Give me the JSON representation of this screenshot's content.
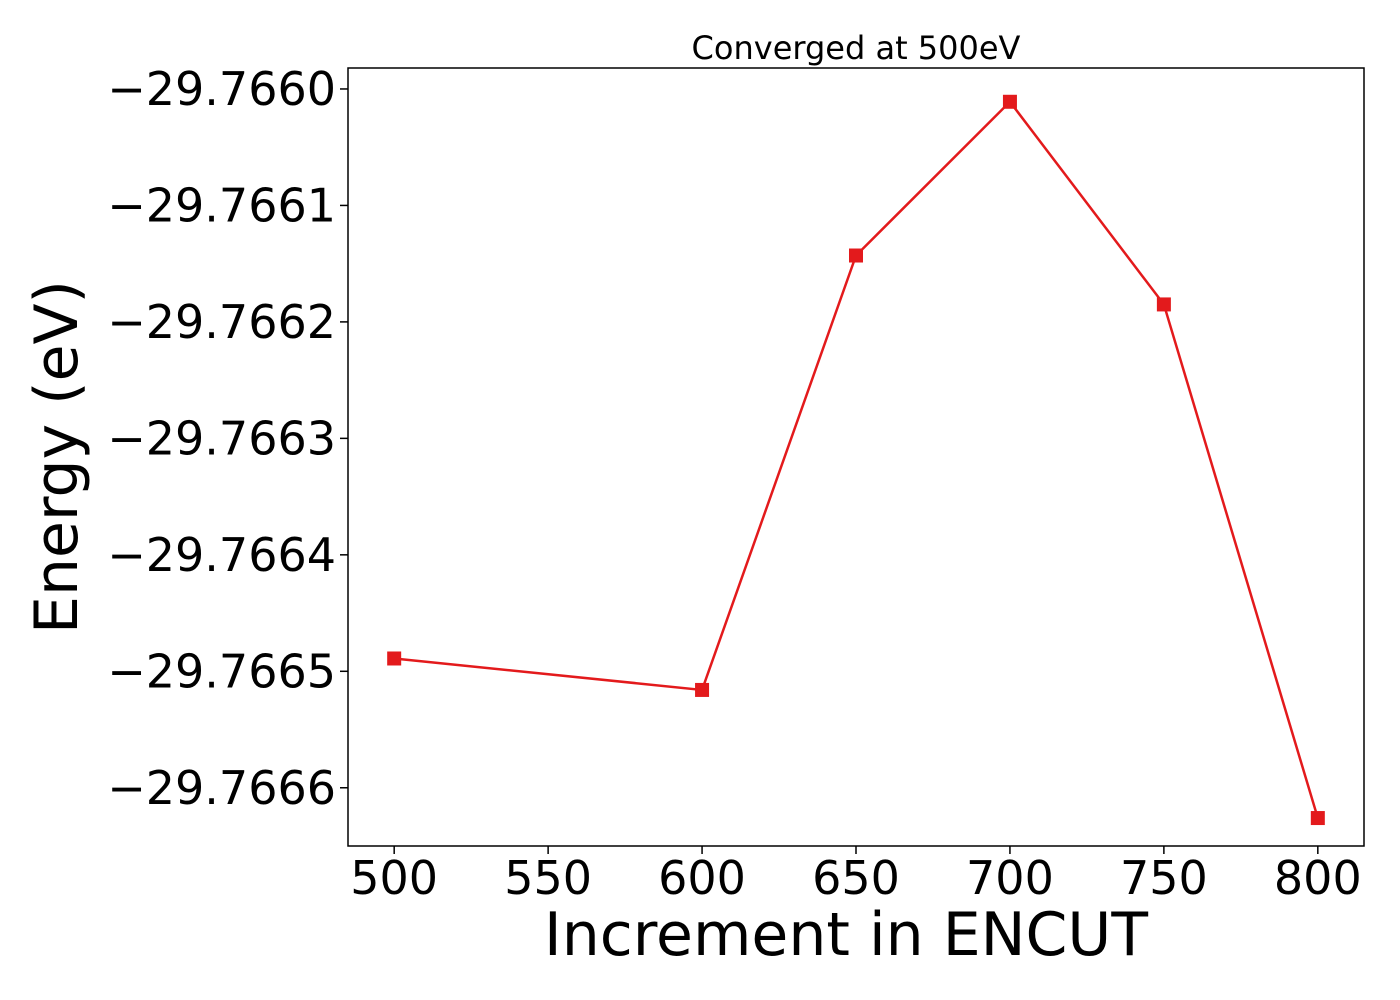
{
  "chart_data": {
    "type": "line",
    "title": "Converged at 500eV",
    "xlabel": "Increment in ENCUT",
    "ylabel": "Energy (eV)",
    "x_ticks": [
      500,
      550,
      600,
      650,
      700,
      750,
      800
    ],
    "x_tick_labels": [
      "500",
      "550",
      "600",
      "650",
      "700",
      "750",
      "800"
    ],
    "y_ticks": [
      -29.7666,
      -29.7665,
      -29.7664,
      -29.7663,
      -29.7662,
      -29.7661,
      -29.766
    ],
    "y_tick_labels": [
      "−29.7666",
      "−29.7665",
      "−29.7664",
      "−29.7663",
      "−29.7662",
      "−29.7661",
      "−29.7660"
    ],
    "xlim": [
      485,
      815
    ],
    "ylim": [
      -29.76665,
      -29.765982
    ],
    "grid": false,
    "legend": "none",
    "series": [
      {
        "marker": "square",
        "color": "#e31a1c",
        "x": [
          500,
          600,
          650,
          700,
          750,
          800
        ],
        "y": [
          -29.766489,
          -29.766516,
          -29.766143,
          -29.766011,
          -29.766185,
          -29.766626
        ]
      }
    ]
  }
}
